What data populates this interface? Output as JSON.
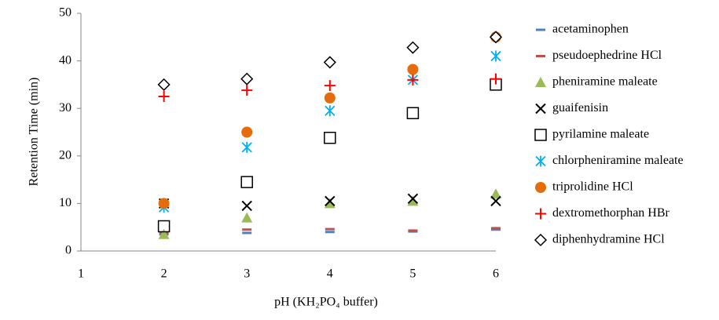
{
  "chart_data": {
    "type": "scatter",
    "xlabel": "pH (KH₂PO₄ buffer)",
    "ylabel": "Retention Time (min)",
    "x": [
      2,
      3,
      4,
      5,
      6
    ],
    "xlim": [
      1,
      6
    ],
    "xticks": [
      1,
      2,
      3,
      4,
      5,
      6
    ],
    "ylim": [
      0,
      50
    ],
    "yticks": [
      0,
      10,
      20,
      30,
      40,
      50
    ],
    "grid": false,
    "legend": "right",
    "series": [
      {
        "name": "acetaminophen",
        "color": "#4f81bd",
        "marker": "dash",
        "values": [
          3.5,
          3.8,
          4.0,
          4.1,
          4.5
        ]
      },
      {
        "name": "pseudoephedrine HCl",
        "color": "#c0504d",
        "marker": "dash",
        "values": [
          3.8,
          4.5,
          4.6,
          4.3,
          4.8
        ]
      },
      {
        "name": "pheniramine maleate",
        "color": "#9bbb59",
        "marker": "triangle",
        "values": [
          3.5,
          7.0,
          10.0,
          10.5,
          12.0
        ]
      },
      {
        "name": "guaifenisin",
        "color": "#000000",
        "marker": "x",
        "values": [
          10.0,
          9.5,
          10.5,
          11.0,
          10.5
        ]
      },
      {
        "name": "pyrilamine maleate",
        "color": "#000000",
        "marker": "square",
        "values": [
          5.2,
          14.5,
          23.8,
          29.0,
          35.0
        ]
      },
      {
        "name": "chlorpheniramine maleate",
        "color": "#00b0f0",
        "marker": "asterisk",
        "values": [
          9.2,
          21.8,
          29.5,
          36.0,
          41.0
        ]
      },
      {
        "name": "triprolidine HCl",
        "color": "#e46c0a",
        "marker": "circle",
        "values": [
          10.0,
          25.0,
          32.2,
          38.2,
          45.0
        ]
      },
      {
        "name": "dextromethorphan HBr",
        "color": "#ff0000",
        "marker": "plus",
        "values": [
          32.5,
          33.8,
          34.8,
          36.0,
          36.2
        ]
      },
      {
        "name": "diphenhydramine HCl",
        "color": "#000000",
        "marker": "diamond",
        "values": [
          35.0,
          36.2,
          39.7,
          42.8,
          45.0
        ]
      }
    ]
  }
}
